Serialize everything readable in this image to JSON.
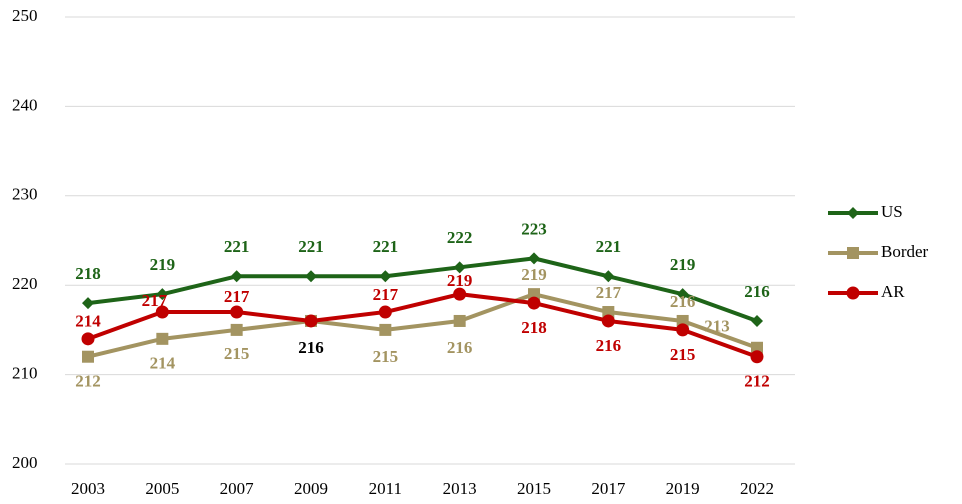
{
  "chart_data": {
    "type": "line",
    "categories": [
      "2003",
      "2005",
      "2007",
      "2009",
      "2011",
      "2013",
      "2015",
      "2017",
      "2019",
      "2022"
    ],
    "series": [
      {
        "name": "US",
        "color": "#1e6418",
        "marker": "diamond",
        "values": [
          218,
          219,
          221,
          221,
          221,
          222,
          223,
          221,
          219,
          216
        ]
      },
      {
        "name": "Border",
        "color": "#a39461",
        "marker": "square",
        "values": [
          212,
          214,
          215,
          216,
          215,
          216,
          219,
          217,
          216,
          213
        ]
      },
      {
        "name": "AR",
        "color": "#c00000",
        "marker": "circle",
        "values": [
          214,
          217,
          217,
          216,
          217,
          219,
          218,
          216,
          215,
          212
        ]
      }
    ],
    "ylim": [
      200,
      250
    ],
    "yticks": [
      200,
      210,
      220,
      230,
      240,
      250
    ],
    "grid": true,
    "legend": "right"
  }
}
